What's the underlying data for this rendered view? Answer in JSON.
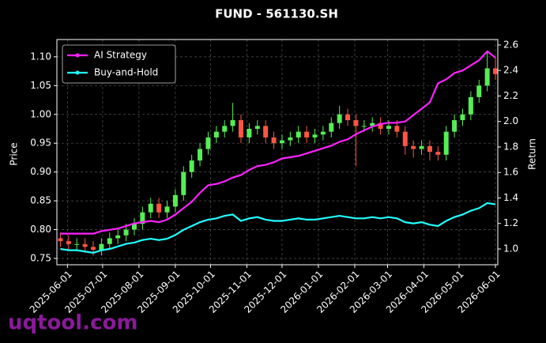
{
  "chart_data": {
    "type": "candlestick-lines",
    "title": "FUND - 561130.SH",
    "ylabel": "Price",
    "y2label": "Return",
    "watermark": "uqtool.com",
    "x": [
      "2025-05-26",
      "2025-06-02",
      "2025-06-09",
      "2025-06-16",
      "2025-06-23",
      "2025-06-30",
      "2025-07-07",
      "2025-07-14",
      "2025-07-21",
      "2025-07-28",
      "2025-08-04",
      "2025-08-11",
      "2025-08-18",
      "2025-08-25",
      "2025-09-01",
      "2025-09-08",
      "2025-09-15",
      "2025-09-22",
      "2025-09-29",
      "2025-10-06",
      "2025-10-13",
      "2025-10-20",
      "2025-10-27",
      "2025-11-03",
      "2025-11-10",
      "2025-11-17",
      "2025-11-24",
      "2025-12-01",
      "2025-12-08",
      "2025-12-15",
      "2025-12-22",
      "2025-12-29",
      "2026-01-05",
      "2026-01-12",
      "2026-01-19",
      "2026-01-26",
      "2026-02-02",
      "2026-02-09",
      "2026-02-16",
      "2026-02-23",
      "2026-03-02",
      "2026-03-09",
      "2026-03-16",
      "2026-03-23",
      "2026-03-30",
      "2026-04-06",
      "2026-04-13",
      "2026-04-20",
      "2026-04-27",
      "2026-05-04",
      "2026-05-11",
      "2026-05-18",
      "2026-05-25",
      "2026-06-01"
    ],
    "candles": {
      "up_color": "#55ee55",
      "down_color": "#ff5544",
      "open": [
        0.785,
        0.78,
        0.775,
        0.775,
        0.77,
        0.765,
        0.775,
        0.785,
        0.79,
        0.8,
        0.81,
        0.83,
        0.845,
        0.83,
        0.84,
        0.86,
        0.9,
        0.92,
        0.94,
        0.96,
        0.97,
        0.98,
        0.99,
        0.96,
        0.975,
        0.98,
        0.96,
        0.95,
        0.955,
        0.96,
        0.97,
        0.96,
        0.965,
        0.97,
        0.985,
        1.0,
        0.99,
        0.98,
        0.98,
        0.985,
        0.975,
        0.98,
        0.97,
        0.945,
        0.94,
        0.945,
        0.935,
        0.93,
        0.97,
        0.99,
        1.0,
        1.03,
        1.05,
        1.08
      ],
      "high": [
        0.795,
        0.79,
        0.785,
        0.785,
        0.78,
        0.785,
        0.795,
        0.8,
        0.81,
        0.82,
        0.84,
        0.855,
        0.855,
        0.85,
        0.87,
        0.91,
        0.93,
        0.95,
        0.97,
        0.98,
        0.99,
        1.02,
        1.0,
        0.985,
        0.99,
        0.99,
        0.97,
        0.965,
        0.97,
        0.98,
        0.98,
        0.975,
        0.98,
        0.995,
        1.015,
        1.01,
        1.0,
        0.99,
        0.995,
        0.995,
        0.99,
        0.99,
        0.98,
        0.955,
        0.955,
        0.955,
        0.945,
        0.98,
        1.0,
        1.01,
        1.04,
        1.06,
        1.11,
        1.1
      ],
      "low": [
        0.77,
        0.765,
        0.765,
        0.76,
        0.755,
        0.755,
        0.765,
        0.775,
        0.78,
        0.79,
        0.8,
        0.82,
        0.82,
        0.82,
        0.83,
        0.85,
        0.89,
        0.91,
        0.93,
        0.95,
        0.96,
        0.97,
        0.95,
        0.95,
        0.965,
        0.95,
        0.94,
        0.94,
        0.945,
        0.95,
        0.95,
        0.95,
        0.955,
        0.96,
        0.975,
        0.98,
        0.91,
        0.97,
        0.97,
        0.965,
        0.965,
        0.96,
        0.93,
        0.925,
        0.93,
        0.92,
        0.92,
        0.92,
        0.96,
        0.98,
        0.99,
        1.02,
        1.04,
        1.06
      ],
      "close": [
        0.78,
        0.775,
        0.775,
        0.77,
        0.765,
        0.775,
        0.785,
        0.79,
        0.8,
        0.81,
        0.83,
        0.845,
        0.83,
        0.84,
        0.86,
        0.9,
        0.92,
        0.94,
        0.96,
        0.97,
        0.98,
        0.99,
        0.96,
        0.975,
        0.98,
        0.96,
        0.95,
        0.955,
        0.96,
        0.97,
        0.96,
        0.965,
        0.97,
        0.985,
        1.0,
        0.99,
        0.98,
        0.98,
        0.985,
        0.975,
        0.98,
        0.97,
        0.945,
        0.94,
        0.945,
        0.935,
        0.93,
        0.97,
        0.99,
        1.0,
        1.03,
        1.05,
        1.08,
        1.07
      ]
    },
    "series": [
      {
        "name": "AI Strategy",
        "color": "#ff22ff",
        "axis": "y2",
        "values": [
          1.12,
          1.12,
          1.12,
          1.12,
          1.12,
          1.14,
          1.15,
          1.16,
          1.18,
          1.2,
          1.21,
          1.22,
          1.21,
          1.23,
          1.27,
          1.32,
          1.37,
          1.44,
          1.5,
          1.51,
          1.53,
          1.56,
          1.58,
          1.62,
          1.65,
          1.66,
          1.68,
          1.71,
          1.72,
          1.73,
          1.75,
          1.77,
          1.79,
          1.81,
          1.84,
          1.86,
          1.9,
          1.93,
          1.96,
          1.98,
          1.99,
          1.99,
          2.0,
          2.05,
          2.1,
          2.15,
          2.3,
          2.33,
          2.38,
          2.4,
          2.44,
          2.48,
          2.55,
          2.5
        ]
      },
      {
        "name": "Buy-and-Hold",
        "color": "#22ffff",
        "axis": "y2",
        "values": [
          1.0,
          0.99,
          0.99,
          0.98,
          0.97,
          0.99,
          1.0,
          1.02,
          1.04,
          1.05,
          1.07,
          1.08,
          1.07,
          1.08,
          1.11,
          1.15,
          1.18,
          1.21,
          1.23,
          1.24,
          1.26,
          1.27,
          1.22,
          1.24,
          1.25,
          1.23,
          1.22,
          1.22,
          1.23,
          1.24,
          1.23,
          1.23,
          1.24,
          1.25,
          1.26,
          1.25,
          1.24,
          1.24,
          1.25,
          1.24,
          1.25,
          1.24,
          1.21,
          1.2,
          1.21,
          1.19,
          1.18,
          1.22,
          1.25,
          1.27,
          1.3,
          1.32,
          1.36,
          1.35
        ]
      }
    ],
    "xlim": [
      "2025-05-23",
      "2026-06-03"
    ],
    "xticks": [
      "2025-06-01",
      "2025-07-01",
      "2025-08-01",
      "2025-09-01",
      "2025-10-01",
      "2025-11-01",
      "2025-12-01",
      "2026-01-01",
      "2026-02-01",
      "2026-03-01",
      "2026-04-01",
      "2026-05-01",
      "2026-06-01"
    ],
    "ylim": [
      0.739,
      1.13
    ],
    "yticks": [
      {
        "value": 0.75,
        "label": "0.75"
      },
      {
        "value": 0.8,
        "label": "0.80"
      },
      {
        "value": 0.85,
        "label": "0.85"
      },
      {
        "value": 0.9,
        "label": "0.90"
      },
      {
        "value": 0.95,
        "label": "0.95"
      },
      {
        "value": 1.0,
        "label": "1.00"
      },
      {
        "value": 1.05,
        "label": "1.05"
      },
      {
        "value": 1.1,
        "label": "1.10"
      }
    ],
    "y2lim": [
      0.876,
      2.643
    ],
    "y2ticks": [
      {
        "value": 1.0,
        "label": "1.0"
      },
      {
        "value": 1.2,
        "label": "1.2"
      },
      {
        "value": 1.4,
        "label": "1.4"
      },
      {
        "value": 1.6,
        "label": "1.6"
      },
      {
        "value": 1.8,
        "label": "1.8"
      },
      {
        "value": 2.0,
        "label": "2.0"
      },
      {
        "value": 2.2,
        "label": "2.2"
      },
      {
        "value": 2.4,
        "label": "2.4"
      },
      {
        "value": 2.6,
        "label": "2.6"
      }
    ],
    "grid": true,
    "legend": "upper left"
  }
}
